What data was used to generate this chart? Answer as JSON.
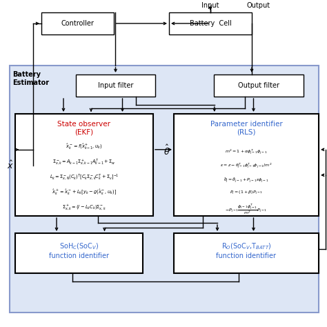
{
  "fig_width": 4.74,
  "fig_height": 4.74,
  "bg_color": "#ffffff",
  "estimator_bg": "#dde6f5",
  "estimator_border": "#8899cc",
  "box_face": "#ffffff",
  "box_edge": "#000000",
  "title_color_red": "#cc0000",
  "title_color_blue": "#3366cc",
  "arrow_color": "#000000",
  "text_color": "#000000",
  "ekf_equations": [
    "$\\hat{x}_k^- = f(\\hat{x}_{k-1}^+, u_k)$",
    "$\\Sigma_{x,k}^- = A_{k-1}\\Sigma_{x,k-1}^+A_{k-1}^T + \\Sigma_w$",
    "$L_k = \\Sigma_{x,N}^-(C_k)^T[C_k\\Sigma_{x,k}^-C_k^T + \\Sigma_v]^{-1}$",
    "$\\hat{x}_k^+ = \\hat{x}_k^- + L_k[y_k - g(\\hat{x}_k^-, u_k)]$",
    "$\\Sigma_{x,k}^+ = (I - L_kC_k)\\Sigma_{x,k}^-$"
  ],
  "rls_equations": [
    "$m^2 = 1 + \\alpha\\phi_{j-1}^T\\phi_{j-1}$",
    "$\\varepsilon = z - \\theta_{j-1}^T\\phi_{j-1}^T\\phi_{j-1}/m^2$",
    "$\\hat{\\theta}_j = \\hat{\\theta}_{j-1} + P_{j-1}\\varepsilon\\phi_{j-1}$",
    "$P_j = (1+\\beta)P_{j-1}$",
    "$-P_{j-1}\\dfrac{\\phi_{j-1}\\phi_{j-1}^T}{m^2}P_{j-1}$"
  ]
}
